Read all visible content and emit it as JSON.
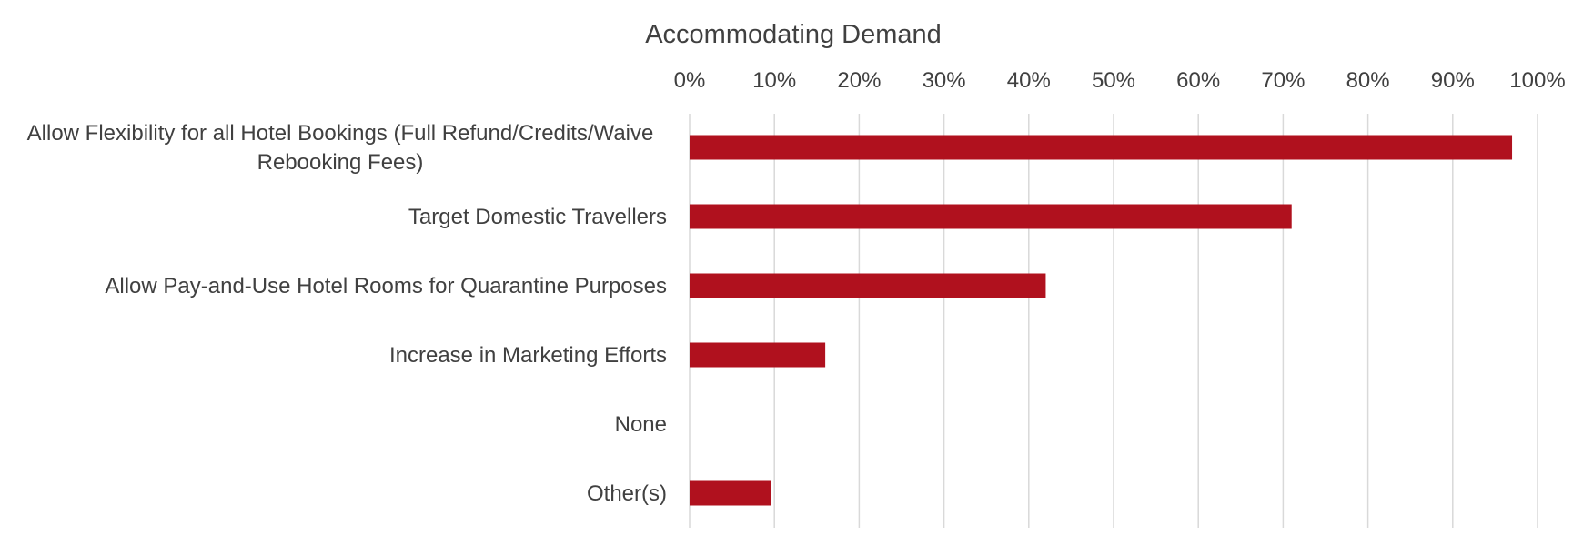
{
  "chart_data": {
    "type": "bar",
    "orientation": "horizontal",
    "title": "Accommodating Demand",
    "xlabel": "",
    "ylabel": "",
    "axis_position": "top",
    "xlim": [
      0,
      100
    ],
    "ticks": [
      0,
      10,
      20,
      30,
      40,
      50,
      60,
      70,
      80,
      90,
      100
    ],
    "tick_labels": [
      "0%",
      "10%",
      "20%",
      "30%",
      "40%",
      "50%",
      "60%",
      "70%",
      "80%",
      "90%",
      "100%"
    ],
    "grid": true,
    "legend": "none",
    "bar_color": "#B0111E",
    "categories": [
      [
        "Allow Flexibility for all Hotel Bookings (Full Refund/Credits/Waive",
        "Rebooking Fees)"
      ],
      [
        "Target Domestic Travellers"
      ],
      [
        "Allow Pay-and-Use Hotel Rooms for Quarantine Purposes"
      ],
      [
        "Increase in Marketing Efforts"
      ],
      [
        "None"
      ],
      [
        "Other(s)"
      ]
    ],
    "values": [
      97,
      71,
      42,
      16,
      0,
      9.6
    ]
  }
}
